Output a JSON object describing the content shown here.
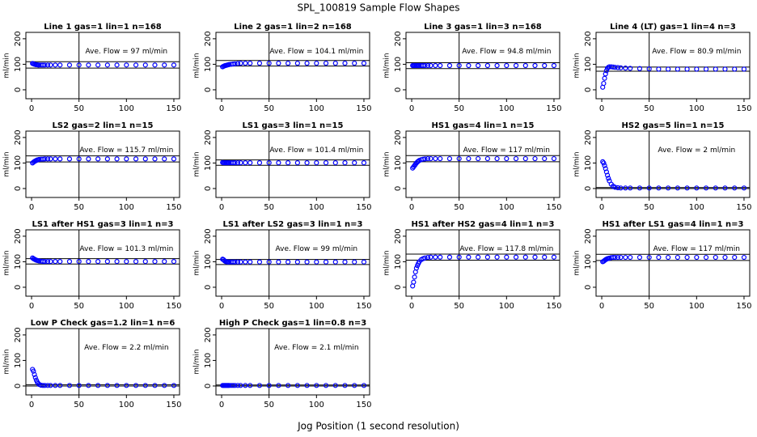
{
  "title": "SPL_100819  Sample Flow Shapes",
  "xlabel": "Jog Position (1 second resolution)",
  "chart_data": [
    {
      "type": "scatter",
      "title": "Line 1 gas=1 lin=1 n=168",
      "annotation": "Ave. Flow =  97  ml/min",
      "ylabel": "ml/min",
      "color": "#0000ff",
      "xlim": [
        -6,
        156
      ],
      "ylim": [
        -35,
        225
      ],
      "xticks": [
        0,
        50,
        100,
        150
      ],
      "yticks": [
        0,
        100,
        200
      ],
      "vline": 50,
      "hlines": [
        85,
        110
      ],
      "x": [
        1,
        2,
        3,
        4,
        5,
        6,
        7,
        8,
        10,
        12,
        14,
        17,
        20,
        25,
        30,
        40,
        50,
        60,
        70,
        80,
        90,
        100,
        110,
        120,
        130,
        140,
        150
      ],
      "values": [
        103,
        102,
        100,
        99,
        98,
        98,
        97,
        97,
        97,
        97,
        97,
        97,
        97,
        97,
        97,
        97,
        97,
        97,
        97,
        97,
        97,
        97,
        97,
        97,
        97,
        97,
        97
      ]
    },
    {
      "type": "scatter",
      "title": "Line 2 gas=1 lin=2 n=168",
      "annotation": "Ave. Flow =  104.1  ml/min",
      "ylabel": "ml/min",
      "color": "#0000ff",
      "xlim": [
        -6,
        156
      ],
      "ylim": [
        -35,
        225
      ],
      "xticks": [
        0,
        50,
        100,
        150
      ],
      "yticks": [
        0,
        100,
        200
      ],
      "vline": 50,
      "hlines": [
        93,
        115
      ],
      "x": [
        1,
        2,
        3,
        4,
        5,
        6,
        7,
        8,
        10,
        12,
        14,
        17,
        20,
        25,
        30,
        40,
        50,
        60,
        70,
        80,
        90,
        100,
        110,
        120,
        130,
        140,
        150
      ],
      "values": [
        90,
        92,
        94,
        95,
        96,
        97,
        98,
        99,
        100,
        101,
        102,
        103,
        104,
        104,
        104,
        104,
        104,
        104,
        104,
        104,
        104,
        104,
        104,
        104,
        104,
        104,
        104
      ]
    },
    {
      "type": "scatter",
      "title": "Line 3 gas=1 lin=3 n=168",
      "annotation": "Ave. Flow =  94.8  ml/min",
      "ylabel": "ml/min",
      "color": "#0000ff",
      "xlim": [
        -6,
        156
      ],
      "ylim": [
        -35,
        225
      ],
      "xticks": [
        0,
        50,
        100,
        150
      ],
      "yticks": [
        0,
        100,
        200
      ],
      "vline": 50,
      "hlines": [
        83,
        106
      ],
      "x": [
        1,
        2,
        3,
        4,
        5,
        6,
        7,
        8,
        10,
        12,
        14,
        17,
        20,
        25,
        30,
        40,
        50,
        60,
        70,
        80,
        90,
        100,
        110,
        120,
        130,
        140,
        150
      ],
      "values": [
        95,
        95,
        95,
        95,
        95,
        95,
        95,
        95,
        95,
        95,
        95,
        95,
        95,
        95,
        95,
        95,
        95,
        95,
        95,
        95,
        95,
        95,
        95,
        95,
        95,
        95,
        95
      ]
    },
    {
      "type": "scatter",
      "title": "Line 4 (LT) gas=1 lin=4 n=3",
      "annotation": "Ave. Flow =  80.9  ml/min",
      "ylabel": "ml/min",
      "color": "#0000ff",
      "xlim": [
        -6,
        156
      ],
      "ylim": [
        -35,
        225
      ],
      "xticks": [
        0,
        50,
        100,
        150
      ],
      "yticks": [
        0,
        100,
        200
      ],
      "vline": 50,
      "hlines": [
        73,
        89
      ],
      "x": [
        1,
        2,
        3,
        4,
        5,
        6,
        7,
        8,
        10,
        12,
        14,
        17,
        20,
        25,
        30,
        40,
        50,
        60,
        70,
        80,
        90,
        100,
        110,
        120,
        130,
        140,
        150
      ],
      "values": [
        10,
        25,
        45,
        62,
        75,
        84,
        88,
        90,
        90,
        89,
        88,
        87,
        86,
        85,
        84,
        83,
        82,
        81,
        81,
        81,
        81,
        81,
        81,
        81,
        81,
        81,
        81
      ]
    },
    {
      "type": "scatter",
      "title": "LS2 gas=2 lin=1 n=15",
      "annotation": "Ave. Flow =  115.7  ml/min",
      "ylabel": "ml/min",
      "color": "#0000ff",
      "xlim": [
        -6,
        156
      ],
      "ylim": [
        -35,
        225
      ],
      "xticks": [
        0,
        50,
        100,
        150
      ],
      "yticks": [
        0,
        100,
        200
      ],
      "vline": 50,
      "hlines": [
        104,
        128
      ],
      "x": [
        1,
        2,
        3,
        4,
        5,
        6,
        7,
        8,
        10,
        12,
        14,
        17,
        20,
        25,
        30,
        40,
        50,
        60,
        70,
        80,
        90,
        100,
        110,
        120,
        130,
        140,
        150
      ],
      "values": [
        100,
        103,
        106,
        108,
        110,
        112,
        113,
        114,
        115,
        115,
        116,
        116,
        116,
        116,
        116,
        116,
        116,
        116,
        116,
        116,
        116,
        116,
        116,
        116,
        116,
        116,
        116
      ]
    },
    {
      "type": "scatter",
      "title": "LS1 gas=3 lin=1 n=15",
      "annotation": "Ave. Flow =  101.4  ml/min",
      "ylabel": "ml/min",
      "color": "#0000ff",
      "xlim": [
        -6,
        156
      ],
      "ylim": [
        -35,
        225
      ],
      "xticks": [
        0,
        50,
        100,
        150
      ],
      "yticks": [
        0,
        100,
        200
      ],
      "vline": 50,
      "hlines": [
        91,
        112
      ],
      "x": [
        1,
        2,
        3,
        4,
        5,
        6,
        7,
        8,
        10,
        12,
        14,
        17,
        20,
        25,
        30,
        40,
        50,
        60,
        70,
        80,
        90,
        100,
        110,
        120,
        130,
        140,
        150
      ],
      "values": [
        102,
        101,
        101,
        101,
        101,
        101,
        101,
        101,
        101,
        101,
        101,
        101,
        101,
        101,
        101,
        101,
        101,
        101,
        101,
        101,
        101,
        101,
        101,
        101,
        101,
        101,
        101
      ]
    },
    {
      "type": "scatter",
      "title": "HS1 gas=4 lin=1 n=15",
      "annotation": "Ave. Flow =  117  ml/min",
      "ylabel": "ml/min",
      "color": "#0000ff",
      "xlim": [
        -6,
        156
      ],
      "ylim": [
        -35,
        225
      ],
      "xticks": [
        0,
        50,
        100,
        150
      ],
      "yticks": [
        0,
        100,
        200
      ],
      "vline": 50,
      "hlines": [
        105,
        129
      ],
      "x": [
        1,
        2,
        3,
        4,
        5,
        6,
        7,
        8,
        10,
        12,
        14,
        17,
        20,
        25,
        30,
        40,
        50,
        60,
        70,
        80,
        90,
        100,
        110,
        120,
        130,
        140,
        150
      ],
      "values": [
        80,
        85,
        90,
        95,
        100,
        104,
        107,
        110,
        113,
        115,
        116,
        117,
        117,
        117,
        117,
        117,
        117,
        117,
        117,
        117,
        117,
        117,
        117,
        117,
        117,
        117,
        117
      ]
    },
    {
      "type": "scatter",
      "title": "HS2 gas=5 lin=1 n=15",
      "annotation": "Ave. Flow =  2  ml/min",
      "ylabel": "ml/min",
      "color": "#0000ff",
      "xlim": [
        -6,
        156
      ],
      "ylim": [
        -35,
        225
      ],
      "xticks": [
        0,
        50,
        100,
        150
      ],
      "yticks": [
        0,
        100,
        200
      ],
      "vline": 50,
      "hlines": [
        0,
        4
      ],
      "x": [
        1,
        2,
        3,
        4,
        5,
        6,
        7,
        8,
        10,
        12,
        14,
        17,
        20,
        25,
        30,
        40,
        50,
        60,
        70,
        80,
        90,
        100,
        110,
        120,
        130,
        140,
        150
      ],
      "values": [
        105,
        100,
        90,
        78,
        65,
        52,
        40,
        30,
        17,
        9,
        5,
        3,
        2,
        2,
        2,
        2,
        2,
        2,
        2,
        2,
        2,
        2,
        2,
        2,
        2,
        2,
        2
      ]
    },
    {
      "type": "scatter",
      "title": "LS1 after HS1 gas=3 lin=1 n=3",
      "annotation": "Ave. Flow =  101.3  ml/min",
      "ylabel": "ml/min",
      "color": "#0000ff",
      "xlim": [
        -6,
        156
      ],
      "ylim": [
        -35,
        225
      ],
      "xticks": [
        0,
        50,
        100,
        150
      ],
      "yticks": [
        0,
        100,
        200
      ],
      "vline": 50,
      "hlines": [
        91,
        112
      ],
      "x": [
        1,
        2,
        3,
        4,
        5,
        6,
        7,
        8,
        10,
        12,
        14,
        17,
        20,
        25,
        30,
        40,
        50,
        60,
        70,
        80,
        90,
        100,
        110,
        120,
        130,
        140,
        150
      ],
      "values": [
        115,
        112,
        110,
        108,
        106,
        105,
        104,
        103,
        102,
        101,
        101,
        101,
        101,
        101,
        101,
        101,
        101,
        101,
        101,
        101,
        101,
        101,
        101,
        101,
        101,
        101,
        101
      ]
    },
    {
      "type": "scatter",
      "title": "LS1 after LS2 gas=3 lin=1 n=3",
      "annotation": "Ave. Flow =  99  ml/min",
      "ylabel": "ml/min",
      "color": "#0000ff",
      "xlim": [
        -6,
        156
      ],
      "ylim": [
        -35,
        225
      ],
      "xticks": [
        0,
        50,
        100,
        150
      ],
      "yticks": [
        0,
        100,
        200
      ],
      "vline": 50,
      "hlines": [
        89,
        109
      ],
      "x": [
        1,
        2,
        3,
        4,
        5,
        6,
        7,
        8,
        10,
        12,
        14,
        17,
        20,
        25,
        30,
        40,
        50,
        60,
        70,
        80,
        90,
        100,
        110,
        120,
        130,
        140,
        150
      ],
      "values": [
        110,
        108,
        104,
        101,
        100,
        99,
        99,
        99,
        99,
        99,
        99,
        99,
        99,
        99,
        99,
        99,
        99,
        99,
        99,
        99,
        99,
        99,
        99,
        99,
        99,
        99,
        99
      ]
    },
    {
      "type": "scatter",
      "title": "HS1 after HS2 gas=4 lin=1 n=3",
      "annotation": "Ave. Flow =  117.8  ml/min",
      "ylabel": "ml/min",
      "color": "#0000ff",
      "xlim": [
        -6,
        156
      ],
      "ylim": [
        -35,
        225
      ],
      "xticks": [
        0,
        50,
        100,
        150
      ],
      "yticks": [
        0,
        100,
        200
      ],
      "vline": 50,
      "hlines": [
        106,
        130
      ],
      "x": [
        1,
        2,
        3,
        4,
        5,
        6,
        7,
        8,
        10,
        12,
        14,
        17,
        20,
        25,
        30,
        40,
        50,
        60,
        70,
        80,
        90,
        100,
        110,
        120,
        130,
        140,
        150
      ],
      "values": [
        5,
        20,
        40,
        60,
        75,
        85,
        93,
        100,
        108,
        112,
        115,
        117,
        118,
        118,
        118,
        118,
        118,
        118,
        118,
        118,
        118,
        118,
        118,
        118,
        118,
        118,
        118
      ]
    },
    {
      "type": "scatter",
      "title": "HS1 after LS1 gas=4 lin=1 n=3",
      "annotation": "Ave. Flow =  117  ml/min",
      "ylabel": "ml/min",
      "color": "#0000ff",
      "xlim": [
        -6,
        156
      ],
      "ylim": [
        -35,
        225
      ],
      "xticks": [
        0,
        50,
        100,
        150
      ],
      "yticks": [
        0,
        100,
        200
      ],
      "vline": 50,
      "hlines": [
        105,
        129
      ],
      "x": [
        1,
        2,
        3,
        4,
        5,
        6,
        7,
        8,
        10,
        12,
        14,
        17,
        20,
        25,
        30,
        40,
        50,
        60,
        70,
        80,
        90,
        100,
        110,
        120,
        130,
        140,
        150
      ],
      "values": [
        100,
        102,
        105,
        108,
        110,
        112,
        113,
        114,
        116,
        117,
        117,
        117,
        117,
        117,
        117,
        117,
        117,
        117,
        117,
        117,
        117,
        117,
        117,
        117,
        117,
        117,
        117
      ]
    },
    {
      "type": "scatter",
      "title": "Low P Check gas=1.2 lin=1 n=6",
      "annotation": "Ave. Flow =  2.2  ml/min",
      "ylabel": "ml/min",
      "color": "#0000ff",
      "xlim": [
        -6,
        156
      ],
      "ylim": [
        -35,
        225
      ],
      "xticks": [
        0,
        50,
        100,
        150
      ],
      "yticks": [
        0,
        100,
        200
      ],
      "vline": 50,
      "hlines": [
        0,
        5
      ],
      "x": [
        1,
        2,
        3,
        4,
        5,
        6,
        7,
        8,
        10,
        12,
        14,
        17,
        20,
        25,
        30,
        40,
        50,
        60,
        70,
        80,
        90,
        100,
        110,
        120,
        130,
        140,
        150
      ],
      "values": [
        65,
        58,
        45,
        33,
        23,
        15,
        10,
        6,
        3,
        2,
        2,
        2,
        2,
        2,
        2,
        2,
        2,
        2,
        2,
        2,
        2,
        2,
        2,
        2,
        2,
        2,
        2
      ]
    },
    {
      "type": "scatter",
      "title": "High P Check gas=1 lin=0.8 n=3",
      "annotation": "Ave. Flow =  2.1  ml/min",
      "ylabel": "ml/min",
      "color": "#0000ff",
      "xlim": [
        -6,
        156
      ],
      "ylim": [
        -35,
        225
      ],
      "xticks": [
        0,
        50,
        100,
        150
      ],
      "yticks": [
        0,
        100,
        200
      ],
      "vline": 50,
      "hlines": [
        0,
        4
      ],
      "x": [
        1,
        2,
        3,
        4,
        5,
        6,
        7,
        8,
        10,
        12,
        14,
        17,
        20,
        25,
        30,
        40,
        50,
        60,
        70,
        80,
        90,
        100,
        110,
        120,
        130,
        140,
        150
      ],
      "values": [
        2,
        2,
        2,
        2,
        2,
        2,
        2,
        2,
        2,
        2,
        2,
        2,
        2,
        2,
        2,
        2,
        2,
        2,
        2,
        2,
        2,
        2,
        2,
        2,
        2,
        2,
        2
      ]
    }
  ]
}
